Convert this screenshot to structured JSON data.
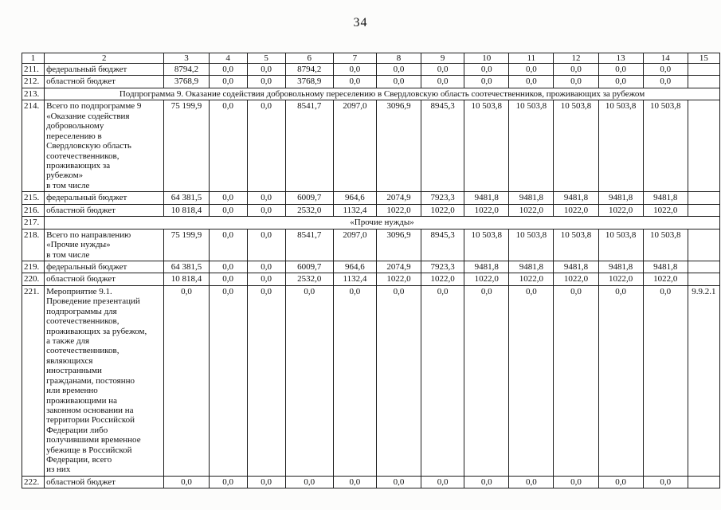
{
  "page": {
    "number": "34"
  },
  "table": {
    "header": [
      "1",
      "2",
      "3",
      "4",
      "5",
      "6",
      "7",
      "8",
      "9",
      "10",
      "11",
      "12",
      "13",
      "14",
      "15"
    ],
    "rows": [
      {
        "num": "211.",
        "type": "data",
        "label": "федеральный бюджет",
        "values": [
          "8794,2",
          "0,0",
          "0,0",
          "8794,2",
          "0,0",
          "0,0",
          "0,0",
          "0,0",
          "0,0",
          "0,0",
          "0,0",
          "0,0"
        ],
        "col15": ""
      },
      {
        "num": "212.",
        "type": "data",
        "label": "областной бюджет",
        "values": [
          "3768,9",
          "0,0",
          "0,0",
          "3768,9",
          "0,0",
          "0,0",
          "0,0",
          "0,0",
          "0,0",
          "0,0",
          "0,0",
          "0,0"
        ],
        "col15": ""
      },
      {
        "num": "213.",
        "type": "span",
        "text": "Подпрограмма 9. Оказание содействия добровольному переселению в Свердловскую область соотечественников, проживающих за рубежом"
      },
      {
        "num": "214.",
        "type": "data",
        "label": "Всего по подпрограмме 9\n«Оказание содействия\nдобровольному\nпереселению в\nСвердловскую область\nсоотечественников,\nпроживающих за\nрубежом»\nв том числе",
        "values": [
          "75 199,9",
          "0,0",
          "0,0",
          "8541,7",
          "2097,0",
          "3096,9",
          "8945,3",
          "10 503,8",
          "10 503,8",
          "10 503,8",
          "10 503,8",
          "10 503,8"
        ],
        "col15": ""
      },
      {
        "num": "215.",
        "type": "data",
        "label": "федеральный бюджет",
        "values": [
          "64 381,5",
          "0,0",
          "0,0",
          "6009,7",
          "964,6",
          "2074,9",
          "7923,3",
          "9481,8",
          "9481,8",
          "9481,8",
          "9481,8",
          "9481,8"
        ],
        "col15": ""
      },
      {
        "num": "216.",
        "type": "data",
        "label": "областной бюджет",
        "values": [
          "10 818,4",
          "0,0",
          "0,0",
          "2532,0",
          "1132,4",
          "1022,0",
          "1022,0",
          "1022,0",
          "1022,0",
          "1022,0",
          "1022,0",
          "1022,0"
        ],
        "col15": ""
      },
      {
        "num": "217.",
        "type": "span",
        "text": "«Прочие нужды»"
      },
      {
        "num": "218.",
        "type": "data",
        "label": "Всего по направлению\n«Прочие нужды»\nв том числе",
        "values": [
          "75 199,9",
          "0,0",
          "0,0",
          "8541,7",
          "2097,0",
          "3096,9",
          "8945,3",
          "10 503,8",
          "10 503,8",
          "10 503,8",
          "10 503,8",
          "10 503,8"
        ],
        "col15": ""
      },
      {
        "num": "219.",
        "type": "data",
        "label": "федеральный бюджет",
        "values": [
          "64 381,5",
          "0,0",
          "0,0",
          "6009,7",
          "964,6",
          "2074,9",
          "7923,3",
          "9481,8",
          "9481,8",
          "9481,8",
          "9481,8",
          "9481,8"
        ],
        "col15": ""
      },
      {
        "num": "220.",
        "type": "data",
        "label": "областной бюджет",
        "values": [
          "10 818,4",
          "0,0",
          "0,0",
          "2532,0",
          "1132,4",
          "1022,0",
          "1022,0",
          "1022,0",
          "1022,0",
          "1022,0",
          "1022,0",
          "1022,0"
        ],
        "col15": ""
      },
      {
        "num": "221.",
        "type": "data",
        "label": "Мероприятие 9.1.\nПроведение презентаций\nподпрограммы для\nсоотечественников,\nпроживающих за рубежом,\nа также для\nсоотечественников,\nявляющихся\nиностранными\nгражданами, постоянно\nили временно\nпроживающими на\nзаконном основании на\nтерритории Российской\nФедерации либо\nполучившими временное\nубежище в Российской\nФедерации, всего\nиз них",
        "values": [
          "0,0",
          "0,0",
          "0,0",
          "0,0",
          "0,0",
          "0,0",
          "0,0",
          "0,0",
          "0,0",
          "0,0",
          "0,0",
          "0,0"
        ],
        "col15": "9.9.2.1"
      },
      {
        "num": "222.",
        "type": "data",
        "label": "областной бюджет",
        "values": [
          "0,0",
          "0,0",
          "0,0",
          "0,0",
          "0,0",
          "0,0",
          "0,0",
          "0,0",
          "0,0",
          "0,0",
          "0,0",
          "0,0"
        ],
        "col15": ""
      }
    ]
  }
}
